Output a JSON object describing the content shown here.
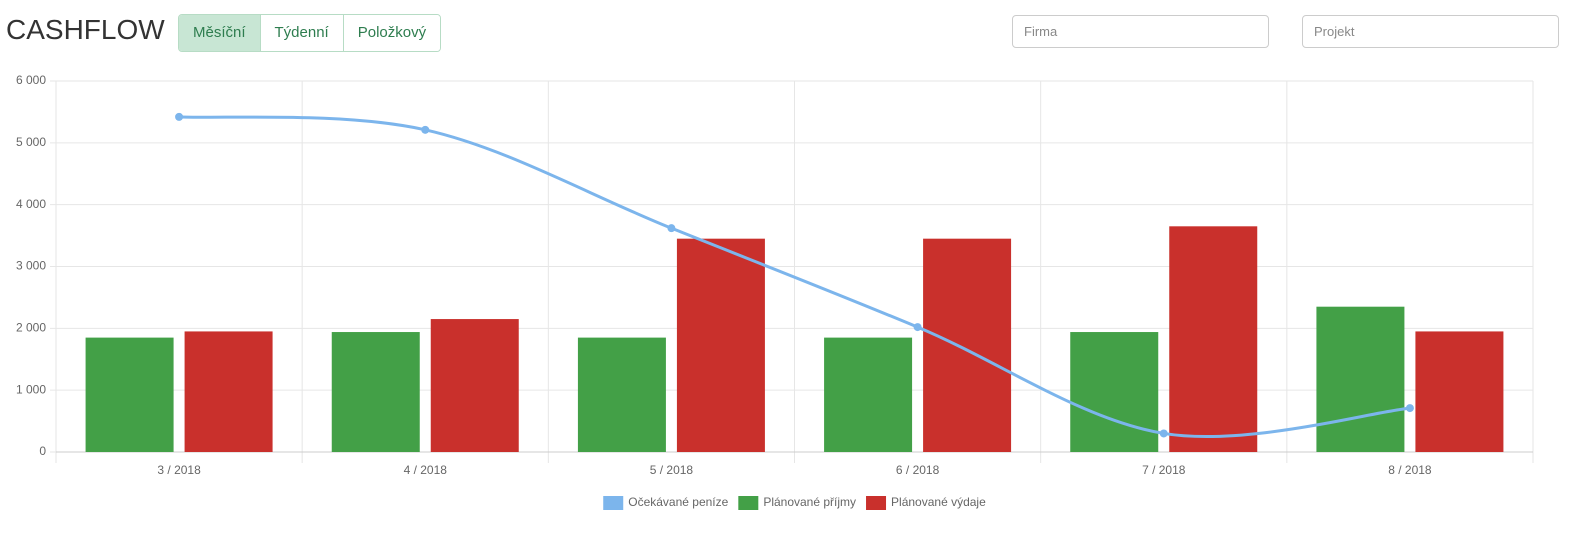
{
  "header": {
    "title": "CASHFLOW",
    "tabs": [
      "Měsíční",
      "Týdenní",
      "Položkový"
    ],
    "filters": [
      "Firma",
      "Projekt"
    ]
  },
  "chart_data": {
    "type": "bar",
    "categories": [
      "3 / 2018",
      "4 / 2018",
      "5 / 2018",
      "6 / 2018",
      "7 / 2018",
      "8 / 2018"
    ],
    "series": [
      {
        "name": "Očekávané peníze",
        "type": "line",
        "color": "#7cb5ec",
        "values": [
          5420,
          5210,
          3620,
          2020,
          300,
          710
        ]
      },
      {
        "name": "Plánované příjmy",
        "type": "bar",
        "color": "#43a047",
        "values": [
          1850,
          1940,
          1850,
          1850,
          1940,
          2350
        ]
      },
      {
        "name": "Plánované výdaje",
        "type": "bar",
        "color": "#c9302c",
        "values": [
          1950,
          2150,
          3450,
          3450,
          3650,
          1950
        ]
      }
    ],
    "ylim": [
      0,
      6000
    ],
    "yticks": [
      0,
      {
        "value": 1000,
        "label": "1 000"
      },
      {
        "value": 2000,
        "label": "2 000"
      },
      {
        "value": 3000,
        "label": "3 000"
      },
      {
        "value": 4000,
        "label": "4 000"
      },
      {
        "value": 5000,
        "label": "5 000"
      },
      {
        "value": 6000,
        "label": "6 000"
      }
    ],
    "grid": true,
    "legend": "bottom"
  }
}
